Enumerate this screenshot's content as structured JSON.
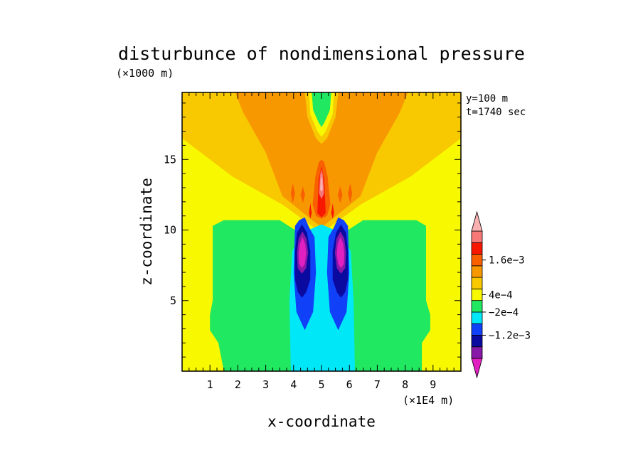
{
  "chart_data": {
    "type": "heatmap",
    "title": "disturbunce of nondimensional pressure",
    "xlabel": "x-coordinate",
    "ylabel": "z-coordinate",
    "x_unit": "(×1E4 m)",
    "y_unit": "(×1000 m)",
    "annotations": [
      "y=100 m",
      "t=1740 sec"
    ],
    "xlim": [
      0,
      10
    ],
    "ylim": [
      0,
      19.75
    ],
    "x_ticks": [
      1,
      2,
      3,
      4,
      5,
      6,
      7,
      8,
      9
    ],
    "y_ticks": [
      5,
      10,
      15
    ],
    "colorbar": {
      "colors": [
        "#e020c0",
        "#8818a8",
        "#0a0aa0",
        "#1040f8",
        "#00e8f8",
        "#20e860",
        "#f8f800",
        "#f8c800",
        "#f89800",
        "#f86000",
        "#f81800",
        "#f87878",
        "#f8b0b0"
      ],
      "labels": [
        {
          "text": "−1.2e−3",
          "at": 3
        },
        {
          "text": "−2e−4",
          "at": 5
        },
        {
          "text": "4e−4",
          "at": 6.5
        },
        {
          "text": "1.6e−3",
          "at": 9.5
        }
      ]
    },
    "regions": [
      {
        "level": "yellow",
        "color": "#f8f800",
        "points": [
          [
            0,
            0
          ],
          [
            10,
            0
          ],
          [
            10,
            19.75
          ],
          [
            0,
            19.75
          ]
        ]
      },
      {
        "level": "light-orange",
        "color": "#f8c800",
        "points": [
          [
            0,
            19.75
          ],
          [
            10,
            19.75
          ],
          [
            10,
            16.5
          ],
          [
            8.2,
            13.8
          ],
          [
            6.4,
            11.8
          ],
          [
            5,
            9.8
          ],
          [
            3.6,
            11.8
          ],
          [
            1.8,
            13.8
          ],
          [
            0,
            16.5
          ]
        ]
      },
      {
        "level": "green",
        "color": "#20e860",
        "points": [
          [
            1.5,
            0
          ],
          [
            8.6,
            0
          ],
          [
            8.6,
            2
          ],
          [
            8.9,
            2.9
          ],
          [
            8.9,
            4
          ],
          [
            8.75,
            5
          ],
          [
            8.75,
            10.3
          ],
          [
            8.4,
            10.7
          ],
          [
            6.5,
            10.7
          ],
          [
            5.4,
            9.3
          ],
          [
            5,
            8.6
          ],
          [
            4.6,
            9.3
          ],
          [
            3.5,
            10.7
          ],
          [
            1.5,
            10.7
          ],
          [
            1.1,
            10.3
          ],
          [
            1.1,
            5
          ],
          [
            1.0,
            4
          ],
          [
            1.0,
            2.9
          ],
          [
            1.3,
            2
          ]
        ]
      },
      {
        "level": "orange",
        "color": "#f89800",
        "points": [
          [
            1.9,
            19.75
          ],
          [
            4.4,
            19.75
          ],
          [
            4.5,
            18
          ],
          [
            4.8,
            16.5
          ],
          [
            5,
            16.1
          ],
          [
            5.2,
            16.5
          ],
          [
            5.5,
            18
          ],
          [
            5.6,
            19.75
          ],
          [
            8.1,
            19.75
          ],
          [
            7.8,
            18.3
          ],
          [
            7,
            15.5
          ],
          [
            6.4,
            12.4
          ],
          [
            5.4,
            10.8
          ],
          [
            5,
            10.2
          ],
          [
            4.6,
            10.8
          ],
          [
            3.6,
            12.4
          ],
          [
            3,
            15.5
          ],
          [
            2.2,
            18.3
          ]
        ]
      },
      {
        "level": "light-orange-core",
        "color": "#f8c800",
        "points": [
          [
            4.4,
            19.75
          ],
          [
            4.5,
            18
          ],
          [
            4.8,
            16.5
          ],
          [
            5,
            16.1
          ],
          [
            5.2,
            16.5
          ],
          [
            5.5,
            18
          ],
          [
            5.6,
            19.75
          ]
        ]
      },
      {
        "level": "yellow-core",
        "color": "#f8f800",
        "points": [
          [
            4.55,
            19.75
          ],
          [
            4.6,
            18.2
          ],
          [
            4.85,
            17
          ],
          [
            5,
            16.6
          ],
          [
            5.15,
            17
          ],
          [
            5.4,
            18.2
          ],
          [
            5.45,
            19.75
          ]
        ]
      },
      {
        "level": "green-core",
        "color": "#20e860",
        "points": [
          [
            4.65,
            19.75
          ],
          [
            4.7,
            18.5
          ],
          [
            4.9,
            17.6
          ],
          [
            5,
            17.3
          ],
          [
            5.1,
            17.6
          ],
          [
            5.3,
            18.5
          ],
          [
            5.35,
            19.75
          ]
        ]
      },
      {
        "level": "cyan",
        "color": "#00e8f8",
        "points": [
          [
            3.9,
            0
          ],
          [
            6.2,
            0
          ],
          [
            6.15,
            5
          ],
          [
            6.05,
            8.5
          ],
          [
            5.7,
            9.8
          ],
          [
            5,
            10.4
          ],
          [
            4.3,
            9.8
          ],
          [
            3.95,
            8.5
          ],
          [
            3.85,
            5
          ]
        ]
      },
      {
        "level": "blue",
        "color": "#1040f8",
        "points": [
          [
            4.05,
            10.3
          ],
          [
            4.2,
            10.7
          ],
          [
            4.4,
            10.9
          ],
          [
            4.55,
            10.2
          ],
          [
            4.75,
            9.5
          ],
          [
            4.8,
            7
          ],
          [
            4.7,
            4.2
          ],
          [
            4.4,
            2.9
          ],
          [
            4.1,
            4.2
          ],
          [
            4.0,
            7
          ]
        ]
      },
      {
        "level": "blue",
        "color": "#1040f8",
        "points": [
          [
            5.95,
            10.3
          ],
          [
            5.8,
            10.7
          ],
          [
            5.6,
            10.9
          ],
          [
            5.45,
            10.2
          ],
          [
            5.25,
            9.5
          ],
          [
            5.2,
            7
          ],
          [
            5.3,
            4.2
          ],
          [
            5.6,
            2.9
          ],
          [
            5.9,
            4.2
          ],
          [
            6.0,
            7
          ]
        ]
      },
      {
        "level": "dark-blue",
        "color": "#0a0aa0",
        "points": [
          [
            4.12,
            9.8
          ],
          [
            4.3,
            10.4
          ],
          [
            4.48,
            9.8
          ],
          [
            4.6,
            8.5
          ],
          [
            4.6,
            6.5
          ],
          [
            4.45,
            5.6
          ],
          [
            4.3,
            5.2
          ],
          [
            4.15,
            5.6
          ],
          [
            4.05,
            6.5
          ],
          [
            4.05,
            8.5
          ]
        ]
      },
      {
        "level": "dark-blue",
        "color": "#0a0aa0",
        "points": [
          [
            5.88,
            9.8
          ],
          [
            5.7,
            10.4
          ],
          [
            5.52,
            9.8
          ],
          [
            5.4,
            8.5
          ],
          [
            5.4,
            6.5
          ],
          [
            5.55,
            5.6
          ],
          [
            5.7,
            5.2
          ],
          [
            5.85,
            5.6
          ],
          [
            5.95,
            6.5
          ],
          [
            5.95,
            8.5
          ]
        ]
      },
      {
        "level": "purple",
        "color": "#8818a8",
        "points": [
          [
            4.18,
            9.4
          ],
          [
            4.32,
            9.9
          ],
          [
            4.46,
            9.4
          ],
          [
            4.52,
            8.4
          ],
          [
            4.45,
            7.3
          ],
          [
            4.3,
            6.9
          ],
          [
            4.15,
            7.3
          ],
          [
            4.12,
            8.4
          ]
        ]
      },
      {
        "level": "purple",
        "color": "#8818a8",
        "points": [
          [
            5.82,
            9.4
          ],
          [
            5.68,
            9.9
          ],
          [
            5.54,
            9.4
          ],
          [
            5.48,
            8.4
          ],
          [
            5.55,
            7.3
          ],
          [
            5.7,
            6.9
          ],
          [
            5.85,
            7.3
          ],
          [
            5.88,
            8.4
          ]
        ]
      },
      {
        "level": "magenta",
        "color": "#e020c0",
        "points": [
          [
            4.22,
            9.0
          ],
          [
            4.32,
            9.5
          ],
          [
            4.42,
            9.0
          ],
          [
            4.45,
            8.3
          ],
          [
            4.4,
            7.6
          ],
          [
            4.3,
            7.3
          ],
          [
            4.2,
            7.6
          ],
          [
            4.18,
            8.3
          ]
        ]
      },
      {
        "level": "magenta",
        "color": "#e020c0",
        "points": [
          [
            5.78,
            9.0
          ],
          [
            5.68,
            9.5
          ],
          [
            5.58,
            9.0
          ],
          [
            5.55,
            8.3
          ],
          [
            5.6,
            7.6
          ],
          [
            5.7,
            7.3
          ],
          [
            5.8,
            7.6
          ],
          [
            5.82,
            8.3
          ]
        ]
      },
      {
        "level": "orange-red",
        "color": "#f86000",
        "points": [
          [
            4.68,
            11.8
          ],
          [
            4.78,
            13.8
          ],
          [
            4.9,
            14.8
          ],
          [
            5,
            15.0
          ],
          [
            5.1,
            14.8
          ],
          [
            5.22,
            13.8
          ],
          [
            5.32,
            11.8
          ],
          [
            5.2,
            11.0
          ],
          [
            5,
            10.8
          ],
          [
            4.8,
            11.0
          ]
        ]
      },
      {
        "level": "orange-red-blob",
        "color": "#f86000",
        "points": [
          [
            3.9,
            12.6
          ],
          [
            3.97,
            13.3
          ],
          [
            4.05,
            12.6
          ],
          [
            3.97,
            11.9
          ]
        ]
      },
      {
        "level": "orange-red-blob",
        "color": "#f86000",
        "points": [
          [
            6.1,
            12.6
          ],
          [
            6.03,
            13.3
          ],
          [
            5.95,
            12.6
          ],
          [
            6.03,
            11.9
          ]
        ]
      },
      {
        "level": "orange-red-blob",
        "color": "#f86000",
        "points": [
          [
            4.25,
            12.5
          ],
          [
            4.33,
            13.1
          ],
          [
            4.41,
            12.5
          ],
          [
            4.33,
            11.9
          ]
        ]
      },
      {
        "level": "orange-red-blob",
        "color": "#f86000",
        "points": [
          [
            5.75,
            12.5
          ],
          [
            5.67,
            13.1
          ],
          [
            5.59,
            12.5
          ],
          [
            5.67,
            11.9
          ]
        ]
      },
      {
        "level": "red",
        "color": "#f81800",
        "points": [
          [
            4.85,
            11.2
          ],
          [
            4.9,
            13.6
          ],
          [
            5,
            14.5
          ],
          [
            5.1,
            13.6
          ],
          [
            5.15,
            11.2
          ],
          [
            5,
            10.9
          ]
        ]
      },
      {
        "level": "red-blob",
        "color": "#f81800",
        "points": [
          [
            4.55,
            11.2
          ],
          [
            4.6,
            11.9
          ],
          [
            4.65,
            11.2
          ],
          [
            4.6,
            10.8
          ]
        ]
      },
      {
        "level": "red-blob",
        "color": "#f81800",
        "points": [
          [
            5.45,
            11.2
          ],
          [
            5.4,
            11.9
          ],
          [
            5.35,
            11.2
          ],
          [
            5.4,
            10.8
          ]
        ]
      },
      {
        "level": "pink",
        "color": "#f87878",
        "points": [
          [
            4.91,
            12.6
          ],
          [
            4.95,
            13.9
          ],
          [
            5,
            14.3
          ],
          [
            5.05,
            13.9
          ],
          [
            5.09,
            12.6
          ],
          [
            5,
            12.2
          ]
        ]
      },
      {
        "level": "light-pink",
        "color": "#f8b0b0",
        "points": [
          [
            4.95,
            12.9
          ],
          [
            4.97,
            13.6
          ],
          [
            5,
            13.8
          ],
          [
            5.03,
            13.6
          ],
          [
            5.05,
            12.9
          ],
          [
            5,
            12.7
          ]
        ]
      }
    ]
  }
}
